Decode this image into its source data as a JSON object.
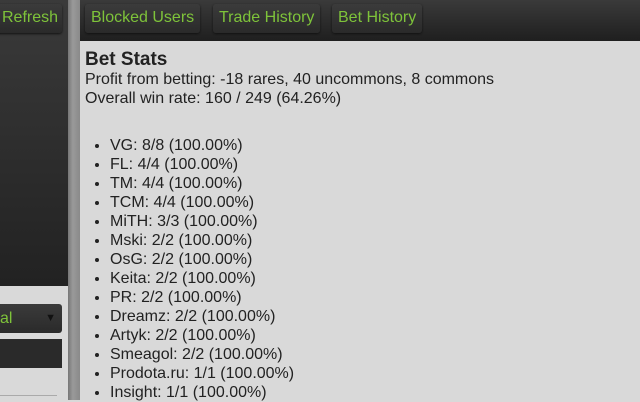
{
  "sidebar": {
    "refresh_label": "Refresh",
    "select_value": "al",
    "select_arrow": "▼"
  },
  "nav": {
    "items": [
      "Blocked Users",
      "Trade History",
      "Bet History"
    ]
  },
  "stats": {
    "title": "Bet Stats",
    "profit": "Profit from betting: -18 rares, 40 uncommons, 8 commons",
    "win_rate": "Overall win rate: 160 / 249 (64.26%)",
    "items": [
      "VG: 8/8 (100.00%)",
      "FL: 4/4 (100.00%)",
      "TM: 4/4 (100.00%)",
      "TCM: 4/4 (100.00%)",
      "MiTH: 3/3 (100.00%)",
      "Mski: 2/2 (100.00%)",
      "OsG: 2/2 (100.00%)",
      "Keita: 2/2 (100.00%)",
      "PR: 2/2 (100.00%)",
      "Dreamz: 2/2 (100.00%)",
      "Artyk: 2/2 (100.00%)",
      "Smeagol: 2/2 (100.00%)",
      "Prodota.ru: 1/1 (100.00%)",
      "Insight: 1/1 (100.00%)"
    ]
  },
  "colors": {
    "accent": "#7ec33a"
  }
}
